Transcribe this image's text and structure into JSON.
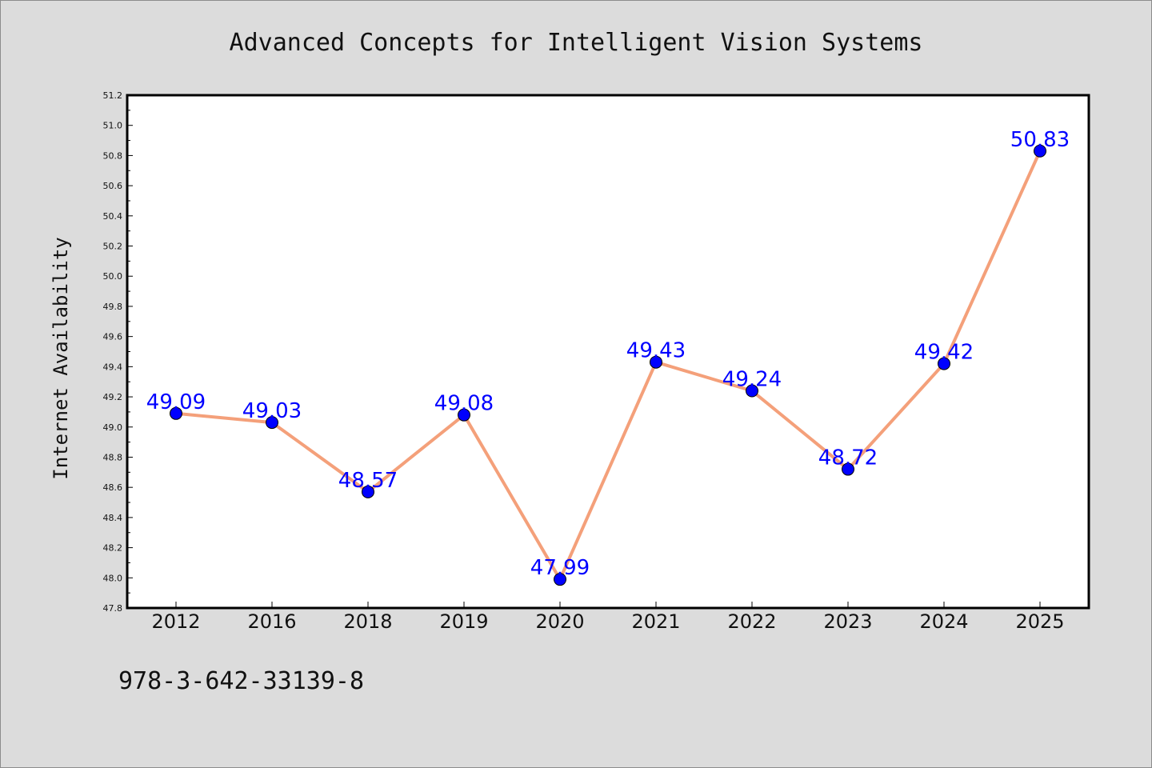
{
  "footer": {
    "isbn": "978-3-642-33139-8"
  },
  "chart_data": {
    "type": "line",
    "title": "Advanced Concepts for Intelligent Vision Systems",
    "xlabel": "",
    "ylabel": "Internet Availability",
    "categories": [
      "2012",
      "2016",
      "2018",
      "2019",
      "2020",
      "2021",
      "2022",
      "2023",
      "2024",
      "2025"
    ],
    "series": [
      {
        "values": [
          49.09,
          49.03,
          48.57,
          49.08,
          47.99,
          49.43,
          49.24,
          48.72,
          49.42,
          50.83
        ],
        "labels": [
          "49.09",
          "49.03",
          "48.57",
          "49.08",
          "47.99",
          "49.43",
          "49.24",
          "48.72",
          "49.42",
          "50.83"
        ],
        "line_color": "#f4a07a",
        "marker_color": "#0000ff"
      }
    ],
    "ylim": [
      47.8,
      51.2
    ],
    "yticks": [
      "47.8",
      "48.0",
      "48.2",
      "48.4",
      "48.6",
      "48.8",
      "49.0",
      "49.2",
      "49.4",
      "49.6",
      "49.8",
      "50.0",
      "50.2",
      "50.4",
      "50.6",
      "50.8",
      "51.0",
      "51.2"
    ],
    "grid": false,
    "legend": "none",
    "background": "#dcdcdc",
    "plot_background": "#ffffff"
  }
}
